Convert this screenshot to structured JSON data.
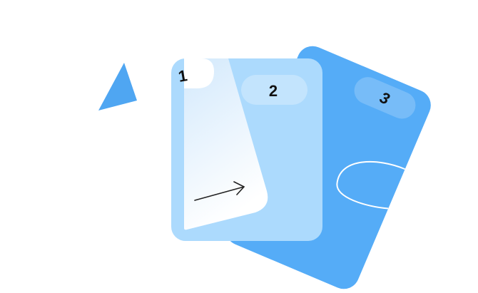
{
  "cards": [
    {
      "label": "1"
    },
    {
      "label": "2"
    },
    {
      "label": "3"
    }
  ],
  "colors": {
    "background": "#ffffff",
    "card_back": "#55acf7",
    "card_middle": "#acdafd",
    "card_front_top": "#d6ebfc",
    "card_front_bottom": "#ffffff",
    "triangle": "#4fa6f2",
    "arrow": "#222222"
  },
  "icons": {
    "triangle": "triangle-shape",
    "arrow": "arrow-right-icon"
  }
}
